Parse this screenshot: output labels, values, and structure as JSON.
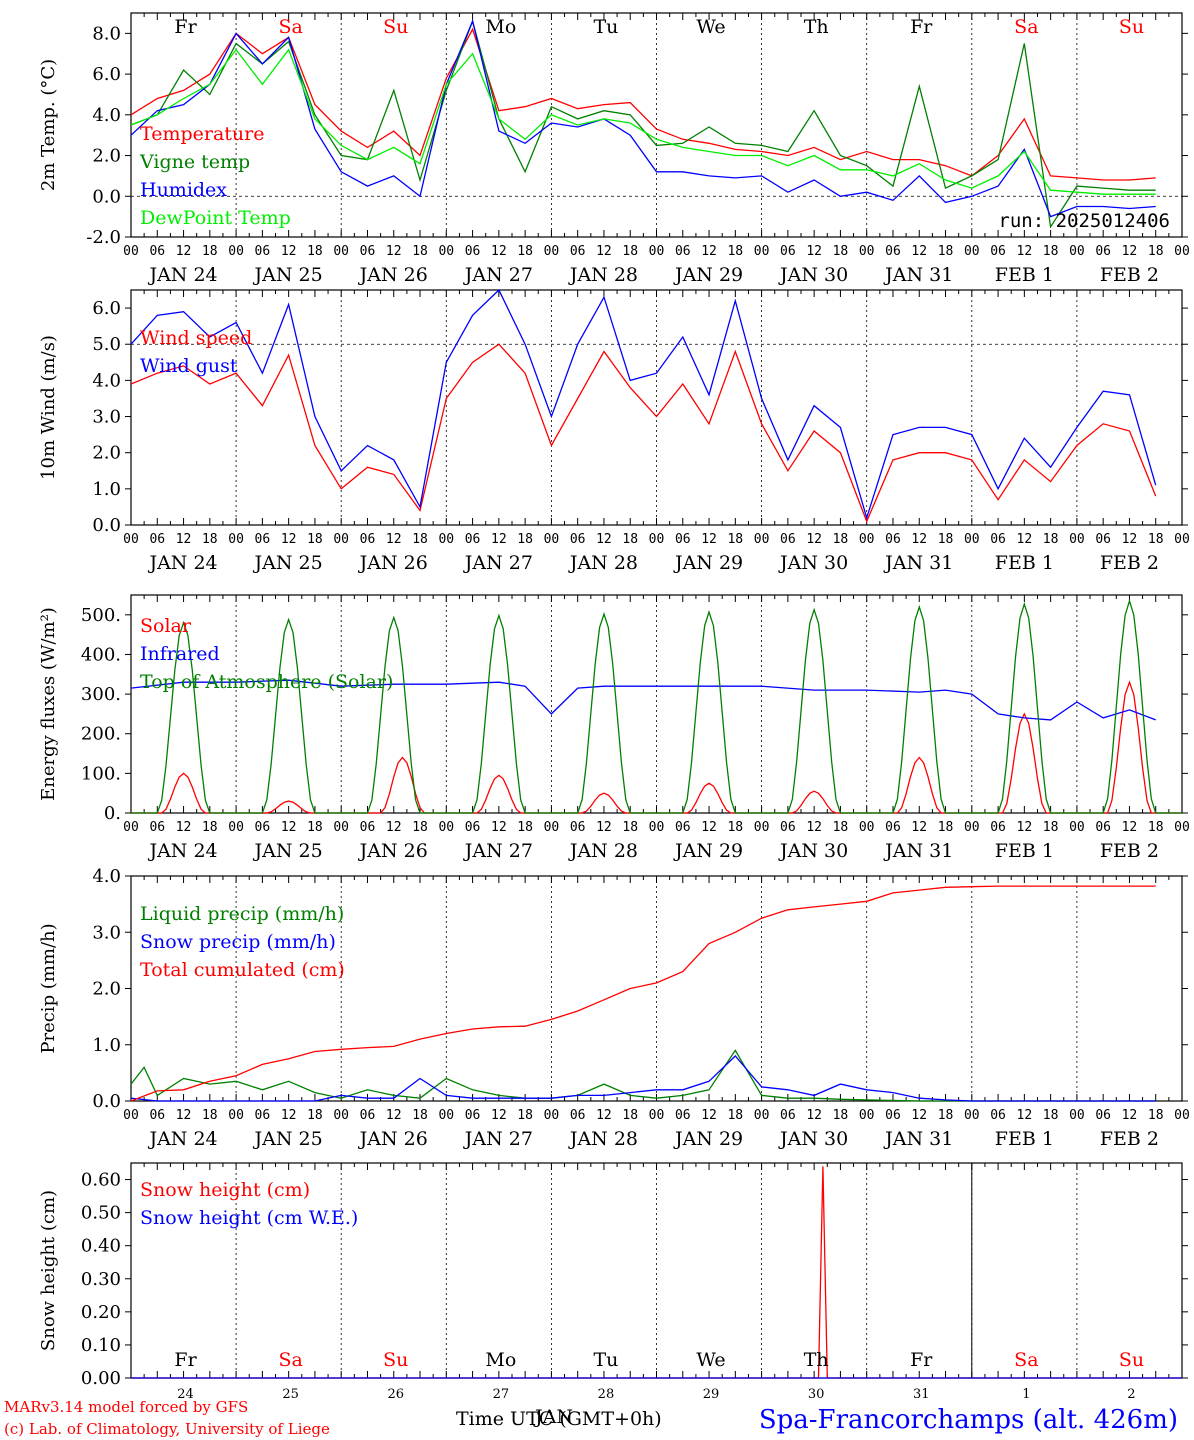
{
  "days": [
    "Fr",
    "Sa",
    "Su",
    "Mo",
    "Tu",
    "We",
    "Th",
    "Fr",
    "Sa",
    "Su"
  ],
  "weekend_days": [
    "Sa",
    "Su"
  ],
  "date_labels": [
    "JAN 24",
    "JAN 25",
    "JAN 26",
    "JAN 27",
    "JAN 28",
    "JAN 29",
    "JAN 30",
    "JAN 31",
    "FEB  1",
    "FEB  2"
  ],
  "hour_ticks": [
    "00",
    "06",
    "12",
    "18"
  ],
  "bottom_days": [
    "24",
    "25",
    "26",
    "27",
    "28",
    "29",
    "30",
    "31",
    "1",
    "2"
  ],
  "footer": {
    "credit1": "MARv3.14 model forced by GFS",
    "credit2": "(c) Lab. of Climatology, University of Liege",
    "time_label": "Time UTC (GMT+0h)",
    "jan_label": "JAN",
    "station": "Spa-Francorchamps (alt. 426m)"
  },
  "colors": {
    "red": "#ff0000",
    "green": "#008000",
    "blue": "#0000ff",
    "lightgreen": "#00ee00"
  },
  "chart_data": [
    {
      "type": "line",
      "ylabel": "2m Temp. (°C)",
      "ylim": [
        -2,
        9
      ],
      "yticks": [
        "-2.0",
        "0.0",
        "2.0",
        "4.0",
        "6.0",
        "8.0"
      ],
      "run": "run: 2025012406",
      "x_unit": "hours since JAN 24 00 UTC",
      "series": [
        {
          "name": "Temperature",
          "color": "red",
          "x": [
            0,
            6,
            12,
            18,
            24,
            30,
            36,
            42,
            48,
            54,
            60,
            66,
            72,
            78,
            84,
            90,
            96,
            102,
            108,
            114,
            120,
            126,
            132,
            138,
            144,
            150,
            156,
            162,
            168,
            174,
            180,
            186,
            192,
            198,
            204,
            210,
            216,
            222,
            228,
            234
          ],
          "y": [
            4.0,
            4.8,
            5.2,
            6.0,
            8.0,
            7.0,
            7.8,
            4.5,
            3.2,
            2.4,
            3.2,
            2.0,
            5.8,
            8.2,
            4.2,
            4.4,
            4.8,
            4.3,
            4.5,
            4.6,
            3.3,
            2.8,
            2.6,
            2.3,
            2.2,
            2.0,
            2.4,
            1.8,
            2.2,
            1.8,
            1.8,
            1.5,
            1.0,
            2.0,
            3.8,
            1.0,
            0.9,
            0.8,
            0.8,
            0.9
          ]
        },
        {
          "name": "Vigne temp",
          "color": "green",
          "x": [
            0,
            6,
            12,
            18,
            24,
            30,
            36,
            42,
            48,
            54,
            60,
            66,
            72,
            78,
            84,
            90,
            96,
            102,
            108,
            114,
            120,
            126,
            132,
            138,
            144,
            150,
            156,
            162,
            168,
            174,
            180,
            186,
            192,
            198,
            204,
            210,
            216,
            222,
            228,
            234
          ],
          "y": [
            3.5,
            4.0,
            6.2,
            5.0,
            7.5,
            6.5,
            7.6,
            4.0,
            2.0,
            1.8,
            5.2,
            0.8,
            5.2,
            8.6,
            3.8,
            1.2,
            4.4,
            3.8,
            4.2,
            4.0,
            2.5,
            2.6,
            3.4,
            2.6,
            2.5,
            2.2,
            4.2,
            2.0,
            1.5,
            0.5,
            5.4,
            0.4,
            1.0,
            1.8,
            7.5,
            -1.5,
            0.5,
            0.4,
            0.3,
            0.3
          ]
        },
        {
          "name": "Humidex",
          "color": "blue",
          "x": [
            0,
            6,
            12,
            18,
            24,
            30,
            36,
            42,
            48,
            54,
            60,
            66,
            72,
            78,
            84,
            90,
            96,
            102,
            108,
            114,
            120,
            126,
            132,
            138,
            144,
            150,
            156,
            162,
            168,
            174,
            180,
            186,
            192,
            198,
            204,
            210,
            216,
            222,
            228,
            234
          ],
          "y": [
            3.0,
            4.2,
            4.5,
            5.5,
            8.0,
            6.5,
            7.8,
            3.3,
            1.2,
            0.5,
            1.0,
            0.0,
            5.5,
            8.6,
            3.2,
            2.6,
            3.6,
            3.4,
            3.8,
            3.0,
            1.2,
            1.2,
            1.0,
            0.9,
            1.0,
            0.2,
            0.8,
            0.0,
            0.2,
            -0.2,
            1.0,
            -0.3,
            0.0,
            0.5,
            2.3,
            -1.0,
            -0.5,
            -0.5,
            -0.6,
            -0.5
          ]
        },
        {
          "name": "DewPoint Temp",
          "color": "lightgreen",
          "x": [
            0,
            6,
            12,
            18,
            24,
            30,
            36,
            42,
            48,
            54,
            60,
            66,
            72,
            78,
            84,
            90,
            96,
            102,
            108,
            114,
            120,
            126,
            132,
            138,
            144,
            150,
            156,
            162,
            168,
            174,
            180,
            186,
            192,
            198,
            204,
            210,
            216,
            222,
            228,
            234
          ],
          "y": [
            3.5,
            4.0,
            4.8,
            5.5,
            7.2,
            5.5,
            7.2,
            3.8,
            2.5,
            1.8,
            2.4,
            1.6,
            5.5,
            7.0,
            3.8,
            2.8,
            4.0,
            3.5,
            3.8,
            3.6,
            2.8,
            2.4,
            2.2,
            2.0,
            2.0,
            1.5,
            2.0,
            1.3,
            1.3,
            1.0,
            1.6,
            0.8,
            0.4,
            1.0,
            2.2,
            0.3,
            0.2,
            0.1,
            0.1,
            0.1
          ]
        }
      ]
    },
    {
      "type": "line",
      "ylabel": "10m Wind (m/s)",
      "ylim": [
        0,
        6.5
      ],
      "yticks": [
        "0.0",
        "1.0",
        "2.0",
        "3.0",
        "4.0",
        "5.0",
        "6.0"
      ],
      "series": [
        {
          "name": "Wind speed",
          "color": "red",
          "x": [
            0,
            6,
            12,
            18,
            24,
            30,
            36,
            42,
            48,
            54,
            60,
            66,
            72,
            78,
            84,
            90,
            96,
            102,
            108,
            114,
            120,
            126,
            132,
            138,
            144,
            150,
            156,
            162,
            168,
            174,
            180,
            186,
            192,
            198,
            204,
            210,
            216,
            222,
            228,
            234
          ],
          "y": [
            3.9,
            4.2,
            4.4,
            3.9,
            4.2,
            3.3,
            4.7,
            2.2,
            1.0,
            1.6,
            1.4,
            0.4,
            3.5,
            4.5,
            5.0,
            4.2,
            2.2,
            3.5,
            4.8,
            3.8,
            3.0,
            3.9,
            2.8,
            4.8,
            2.8,
            1.5,
            2.6,
            2.0,
            0.1,
            1.8,
            2.0,
            2.0,
            1.8,
            0.7,
            1.8,
            1.2,
            2.2,
            2.8,
            2.6,
            0.8
          ]
        },
        {
          "name": "Wind gust",
          "color": "blue",
          "x": [
            0,
            6,
            12,
            18,
            24,
            30,
            36,
            42,
            48,
            54,
            60,
            66,
            72,
            78,
            84,
            90,
            96,
            102,
            108,
            114,
            120,
            126,
            132,
            138,
            144,
            150,
            156,
            162,
            168,
            174,
            180,
            186,
            192,
            198,
            204,
            210,
            216,
            222,
            228,
            234
          ],
          "y": [
            5.0,
            5.8,
            5.9,
            5.2,
            5.6,
            4.2,
            6.1,
            3.0,
            1.5,
            2.2,
            1.8,
            0.5,
            4.5,
            5.8,
            6.5,
            5.0,
            3.0,
            5.0,
            6.3,
            4.0,
            4.2,
            5.2,
            3.6,
            6.2,
            3.5,
            1.8,
            3.3,
            2.7,
            0.2,
            2.5,
            2.7,
            2.7,
            2.5,
            1.0,
            2.4,
            1.6,
            2.7,
            3.7,
            3.6,
            1.1
          ]
        }
      ]
    },
    {
      "type": "line",
      "ylabel": "Energy fluxes (W/m²)",
      "ylim": [
        0,
        550
      ],
      "yticks": [
        "0.",
        "100.",
        "200.",
        "300.",
        "400.",
        "500."
      ],
      "series": [
        {
          "name": "Solar",
          "color": "red",
          "peaks": [
            [
              12,
              100
            ],
            [
              36,
              30
            ],
            [
              62,
              140
            ],
            [
              84,
              95
            ],
            [
              108,
              50
            ],
            [
              132,
              75
            ],
            [
              156,
              55
            ],
            [
              180,
              140
            ],
            [
              204,
              250
            ],
            [
              228,
              330
            ]
          ]
        },
        {
          "name": "Infrared",
          "color": "blue",
          "x": [
            0,
            12,
            24,
            36,
            48,
            60,
            72,
            84,
            90,
            96,
            102,
            108,
            120,
            132,
            144,
            156,
            168,
            180,
            186,
            192,
            198,
            204,
            210,
            216,
            222,
            228,
            234
          ],
          "y": [
            315,
            330,
            330,
            335,
            320,
            325,
            325,
            330,
            320,
            250,
            315,
            320,
            320,
            320,
            320,
            310,
            310,
            305,
            310,
            300,
            250,
            240,
            235,
            280,
            240,
            260,
            235
          ]
        },
        {
          "name": "Top of Atmosphere (Solar)",
          "color": "green",
          "peaks": [
            [
              12,
              480
            ],
            [
              36,
              488
            ],
            [
              60,
              493
            ],
            [
              84,
              498
            ],
            [
              108,
              502
            ],
            [
              132,
              507
            ],
            [
              156,
              513
            ],
            [
              180,
              520
            ],
            [
              204,
              527
            ],
            [
              228,
              535
            ]
          ]
        }
      ]
    },
    {
      "type": "line",
      "ylabel": "Precip (mm/h)",
      "ylim": [
        0,
        4
      ],
      "yticks": [
        "0.0",
        "1.0",
        "2.0",
        "3.0",
        "4.0"
      ],
      "series": [
        {
          "name": "Liquid precip (mm/h)",
          "color": "green",
          "x": [
            0,
            3,
            6,
            12,
            18,
            24,
            30,
            36,
            42,
            48,
            54,
            60,
            66,
            72,
            78,
            84,
            90,
            96,
            102,
            108,
            114,
            120,
            126,
            132,
            138,
            144,
            150,
            156,
            162,
            168,
            174,
            180,
            186,
            192,
            198,
            204,
            210,
            216,
            222,
            228,
            234
          ],
          "y": [
            0.3,
            0.6,
            0.1,
            0.4,
            0.3,
            0.35,
            0.2,
            0.35,
            0.15,
            0.05,
            0.2,
            0.1,
            0.05,
            0.4,
            0.2,
            0.1,
            0.05,
            0.05,
            0.1,
            0.3,
            0.1,
            0.05,
            0.1,
            0.2,
            0.9,
            0.1,
            0.05,
            0.05,
            0.03,
            0.02,
            0.01,
            0.0,
            0.0,
            0.0,
            0.0,
            0.0,
            0.0,
            0.0,
            0.0,
            0.0,
            0.0
          ]
        },
        {
          "name": "Snow precip (mm/h)",
          "color": "blue",
          "x": [
            0,
            6,
            12,
            18,
            24,
            30,
            36,
            42,
            48,
            54,
            60,
            66,
            72,
            78,
            84,
            90,
            96,
            102,
            108,
            114,
            120,
            126,
            132,
            138,
            144,
            150,
            156,
            162,
            168,
            174,
            180,
            186,
            192,
            198,
            204,
            210,
            216,
            222,
            228,
            234
          ],
          "y": [
            0.05,
            0.0,
            0.0,
            0.0,
            0.0,
            0.0,
            0.0,
            0.0,
            0.1,
            0.05,
            0.05,
            0.4,
            0.1,
            0.05,
            0.05,
            0.05,
            0.05,
            0.1,
            0.1,
            0.15,
            0.2,
            0.2,
            0.35,
            0.8,
            0.25,
            0.2,
            0.1,
            0.3,
            0.2,
            0.15,
            0.05,
            0.02,
            0.0,
            0.0,
            0.0,
            0.0,
            0.0,
            0.0,
            0.0,
            0.0
          ]
        },
        {
          "name": "Total cumulated (cm)",
          "color": "red",
          "x": [
            0,
            6,
            12,
            18,
            24,
            30,
            36,
            42,
            48,
            54,
            60,
            66,
            72,
            78,
            84,
            90,
            96,
            102,
            108,
            114,
            120,
            126,
            132,
            138,
            144,
            150,
            156,
            162,
            168,
            174,
            180,
            186,
            192,
            198,
            204,
            210,
            216,
            222,
            228,
            234
          ],
          "y": [
            0.0,
            0.18,
            0.2,
            0.35,
            0.45,
            0.65,
            0.75,
            0.88,
            0.92,
            0.95,
            0.97,
            1.1,
            1.2,
            1.28,
            1.32,
            1.33,
            1.45,
            1.6,
            1.8,
            2.0,
            2.1,
            2.3,
            2.8,
            3.0,
            3.25,
            3.4,
            3.45,
            3.5,
            3.55,
            3.7,
            3.75,
            3.8,
            3.81,
            3.82,
            3.82,
            3.82,
            3.82,
            3.82,
            3.82,
            3.82
          ]
        }
      ]
    },
    {
      "type": "line",
      "ylabel": "Snow height (cm)",
      "ylim": [
        0,
        0.65
      ],
      "yticks": [
        "0.00",
        "0.10",
        "0.20",
        "0.30",
        "0.40",
        "0.50",
        "0.60"
      ],
      "series": [
        {
          "name": "Snow height (cm)",
          "color": "red",
          "x": [
            0,
            157,
            158,
            159,
            240
          ],
          "y": [
            0,
            0,
            0.64,
            0,
            0
          ]
        },
        {
          "name": "Snow height (cm W.E.)",
          "color": "blue",
          "x": [
            0,
            240
          ],
          "y": [
            0,
            0
          ]
        }
      ]
    }
  ]
}
